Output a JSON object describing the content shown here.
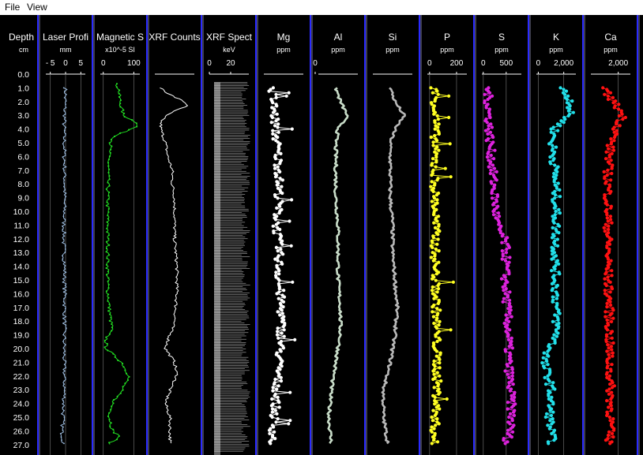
{
  "menu": [
    {
      "id": "file",
      "label": "File"
    },
    {
      "id": "view",
      "label": "View"
    }
  ],
  "depth_track": {
    "title": "Depth",
    "unit": "cm",
    "labels": [
      "0.0",
      "1.0",
      "2.0",
      "3.0",
      "4.0",
      "5.0",
      "6.0",
      "7.0",
      "8.0",
      "9.0",
      "10.0",
      "11.0",
      "12.0",
      "13.0",
      "14.0",
      "15.0",
      "16.0",
      "17.0",
      "18.0",
      "19.0",
      "20.0",
      "21.0",
      "22.0",
      "23.0",
      "24.0",
      "25.0",
      "26.0",
      "27.0"
    ]
  },
  "colors": {
    "background": "#000000",
    "divider": "#2a2aff",
    "laser": "#9dbde0",
    "magnetic": "#22dd22",
    "xrf_counts": "#ffffff",
    "xrf_spectrum": "#ffffff",
    "Mg": "#ffffff",
    "Al": "#c8dcc8",
    "Si": "#b8b8b8",
    "P": "#ffff22",
    "S": "#dd22dd",
    "K": "#22e0ea",
    "Ca": "#ff1111",
    "grid": "#6a6a6a"
  },
  "chart_data": {
    "type": "line",
    "orientation": "vertical-depth",
    "depth_axis": {
      "title": "Depth",
      "unit": "cm",
      "range": [
        0,
        27
      ],
      "step": 1
    },
    "tracks": [
      {
        "id": "laser",
        "title": "Laser Profi",
        "unit": "mm",
        "ticks": [
          "- 5",
          "0",
          "5"
        ],
        "tick_values": [
          -5,
          0,
          5
        ],
        "xlim": [
          -7.5,
          7.5
        ],
        "grid": true,
        "depths": [
          1,
          4,
          8,
          12,
          16,
          20,
          23,
          25,
          26,
          27
        ],
        "values": [
          0,
          -0.5,
          -0.3,
          -0.6,
          -0.2,
          -0.5,
          -0.4,
          -0.8,
          -1.2,
          -0.6
        ]
      },
      {
        "id": "magnetic",
        "title": "Magnetic S",
        "unit": "x10^-5 SI",
        "ticks": [
          "0",
          "100"
        ],
        "tick_values": [
          0,
          100
        ],
        "xlim": [
          -20,
          130
        ],
        "grid": true,
        "depths": [
          0.7,
          1.0,
          2.0,
          3.0,
          3.6,
          3.8,
          4.5,
          5,
          6,
          8,
          10,
          12,
          14,
          16,
          17,
          18,
          18.5,
          19,
          19.5,
          20,
          21,
          22,
          23,
          24,
          25,
          26,
          26.4,
          27
        ],
        "values": [
          40,
          50,
          55,
          65,
          115,
          110,
          40,
          25,
          18,
          15,
          15,
          15,
          15,
          15,
          20,
          25,
          30,
          15,
          8,
          10,
          60,
          85,
          60,
          30,
          20,
          30,
          55,
          15
        ]
      },
      {
        "id": "xrf_counts",
        "title": "XRF Counts",
        "unit": "",
        "ticks": [],
        "tick_values": [],
        "xlim": [
          0,
          100
        ],
        "grid": false,
        "depths": [
          1,
          1.5,
          2,
          2.3,
          2.5,
          3,
          3.5,
          4,
          5,
          6,
          7,
          8,
          9,
          10,
          12,
          14,
          16,
          18,
          19,
          20,
          21,
          22,
          23,
          24,
          25,
          26,
          27
        ],
        "values": [
          20,
          40,
          70,
          80,
          60,
          30,
          20,
          20,
          30,
          35,
          45,
          45,
          50,
          50,
          50,
          55,
          55,
          50,
          40,
          30,
          50,
          55,
          40,
          30,
          40,
          40,
          40
        ]
      },
      {
        "id": "xrf_spectrum",
        "title": "XRF Spect",
        "unit": "keV",
        "ticks": [
          "0",
          "20"
        ],
        "tick_values": [
          0,
          20
        ],
        "xlim": [
          -3,
          40
        ],
        "grid": false,
        "depths": [
          0.5,
          27.5
        ],
        "values": [
          0,
          30
        ]
      },
      {
        "id": "Mg",
        "title": "Mg",
        "unit": "ppm",
        "ticks": [],
        "tick_values": [],
        "xlim": [
          0,
          100
        ],
        "grid": false,
        "depths": [
          1,
          3,
          5,
          7,
          9,
          11,
          13,
          15,
          17,
          19,
          21,
          23,
          25,
          27
        ],
        "values": [
          25,
          30,
          35,
          40,
          40,
          35,
          40,
          40,
          45,
          45,
          40,
          35,
          30,
          25
        ]
      },
      {
        "id": "Al",
        "title": "Al",
        "unit": "ppm",
        "ticks": [
          "0"
        ],
        "tick_values": [
          0
        ],
        "xlim": [
          0,
          100
        ],
        "grid": false,
        "depths": [
          1,
          2,
          3,
          4,
          5,
          7,
          9,
          11,
          13,
          15,
          17,
          19,
          21,
          23,
          25,
          27
        ],
        "values": [
          45,
          55,
          70,
          50,
          45,
          45,
          45,
          50,
          50,
          50,
          55,
          55,
          45,
          35,
          30,
          35
        ]
      },
      {
        "id": "Si",
        "title": "Si",
        "unit": "ppm",
        "ticks": [],
        "tick_values": [],
        "xlim": [
          0,
          100
        ],
        "grid": false,
        "depths": [
          1,
          2,
          3,
          4,
          5,
          7,
          9,
          11,
          13,
          15,
          17,
          19,
          21,
          23,
          25,
          27
        ],
        "values": [
          45,
          55,
          75,
          55,
          45,
          45,
          45,
          50,
          50,
          55,
          60,
          55,
          45,
          30,
          30,
          40
        ]
      },
      {
        "id": "P",
        "title": "P",
        "unit": "ppm",
        "ticks": [
          "0",
          "200"
        ],
        "tick_values": [
          0,
          200
        ],
        "xlim": [
          -40,
          300
        ],
        "grid": true,
        "depths": [
          1,
          3,
          5,
          7,
          9,
          11,
          13,
          15,
          17,
          19,
          21,
          23,
          25,
          27
        ],
        "values": [
          40,
          45,
          40,
          35,
          40,
          45,
          40,
          45,
          50,
          50,
          55,
          55,
          45,
          30
        ]
      },
      {
        "id": "S",
        "title": "S",
        "unit": "ppm",
        "ticks": [
          "0",
          "500"
        ],
        "tick_values": [
          0,
          500
        ],
        "xlim": [
          -100,
          900
        ],
        "grid": true,
        "depths": [
          1,
          3,
          5,
          7,
          9,
          11,
          12,
          13,
          15,
          17,
          19,
          21,
          23,
          25,
          26,
          27
        ],
        "values": [
          100,
          120,
          150,
          200,
          250,
          300,
          450,
          500,
          480,
          520,
          550,
          550,
          600,
          620,
          580,
          500
        ]
      },
      {
        "id": "K",
        "title": "K",
        "unit": "ppm",
        "ticks": [
          "0",
          "2,000"
        ],
        "tick_values": [
          0,
          2000
        ],
        "xlim": [
          -400,
          3200
        ],
        "grid": true,
        "depths": [
          1,
          2,
          3,
          4,
          5,
          7,
          9,
          11,
          13,
          15,
          17,
          19,
          20,
          21,
          22,
          23,
          25,
          27
        ],
        "values": [
          1800,
          2600,
          2400,
          1300,
          1100,
          1300,
          1400,
          1400,
          1350,
          1350,
          1400,
          1450,
          900,
          400,
          800,
          1000,
          900,
          1100
        ]
      },
      {
        "id": "Ca",
        "title": "Ca",
        "unit": "ppm",
        "ticks": [
          "2,000"
        ],
        "tick_values": [
          2000
        ],
        "xlim": [
          -400,
          3200
        ],
        "grid": true,
        "depths": [
          1,
          2,
          3,
          4,
          5,
          7,
          9,
          11,
          13,
          15,
          17,
          19,
          21,
          23,
          25,
          27
        ],
        "values": [
          800,
          1600,
          2400,
          1900,
          1400,
          1200,
          1200,
          1200,
          1200,
          1200,
          1300,
          1300,
          1300,
          1400,
          1400,
          1300
        ]
      }
    ]
  }
}
